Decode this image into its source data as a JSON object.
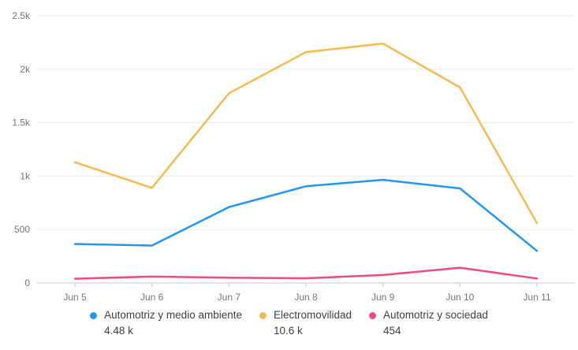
{
  "chart_data": {
    "type": "line",
    "title": "",
    "xlabel": "",
    "ylabel": "",
    "categories": [
      "Jun 5",
      "Jun 6",
      "Jun 7",
      "Jun 8",
      "Jun 9",
      "Jun 10",
      "Jun 11"
    ],
    "series": [
      {
        "name": "Automotriz y medio ambiente",
        "total_label": "4.48 k",
        "color": "#2196F3",
        "values": [
          365,
          350,
          710,
          905,
          965,
          885,
          300
        ]
      },
      {
        "name": "Electromovilidad",
        "total_label": "10.6 k",
        "color": "#F6BA52",
        "values": [
          1130,
          890,
          1775,
          2160,
          2240,
          1830,
          560
        ]
      },
      {
        "name": "Automotriz y sociedad",
        "total_label": "454",
        "color": "#EE4B7E",
        "values": [
          40,
          60,
          50,
          44,
          75,
          143,
          42
        ]
      }
    ],
    "ylim": [
      0,
      2500
    ],
    "yticks": [
      {
        "value": 0,
        "label": "0"
      },
      {
        "value": 500,
        "label": "500"
      },
      {
        "value": 1000,
        "label": "1k"
      },
      {
        "value": 1500,
        "label": "1.5k"
      },
      {
        "value": 2000,
        "label": "2k"
      },
      {
        "value": 2500,
        "label": "2.5k"
      }
    ],
    "grid": true,
    "legend_position": "bottom"
  },
  "styles": {
    "grid_color": "#ebebeb",
    "axis_line_color": "#c9c9c9",
    "tick_label_color": "#757575",
    "legend_text_color": "#3c4043",
    "background_color": "#ffffff"
  }
}
